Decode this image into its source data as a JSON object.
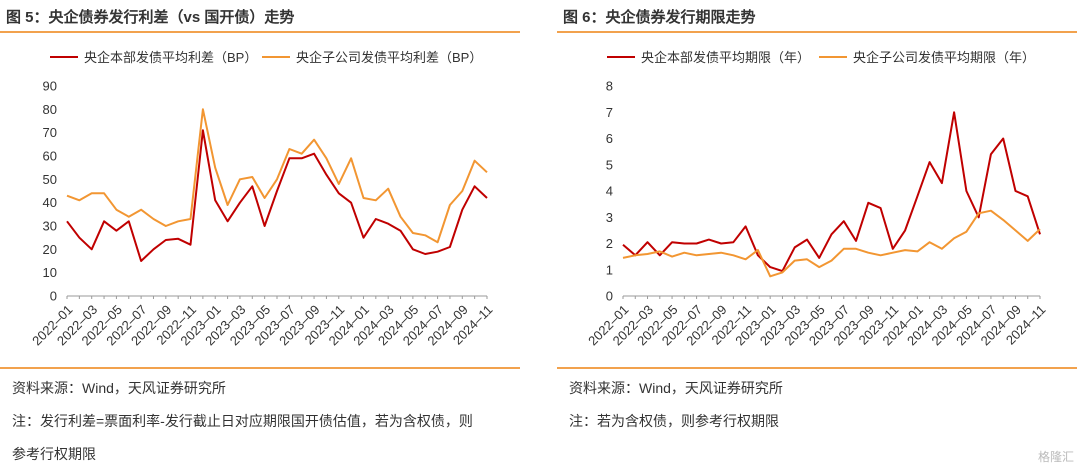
{
  "left_panel": {
    "title": "图 5：央企债券发行利差（vs 国开债）走势",
    "source": "资料来源：Wind，天风证券研究所",
    "note_line1": "注：发行利差=票面利率-发行截止日对应期限国开债估值，若为含权债，则",
    "note_line2": "参考行权期限"
  },
  "right_panel": {
    "title": "图 6：央企债券发行期限走势",
    "source": "资料来源：Wind，天风证券研究所",
    "note_line1": "注：若为含权债，则参考行权期限"
  },
  "watermark": "格隆汇",
  "colors": {
    "series1": "#c00000",
    "series2": "#f29632",
    "accent": "#f2a24d"
  },
  "chart_data": [
    {
      "type": "line",
      "x": [
        "2022-01",
        "2022-02",
        "2022-03",
        "2022-04",
        "2022-05",
        "2022-06",
        "2022-07",
        "2022-08",
        "2022-09",
        "2022-10",
        "2022-11",
        "2022-12",
        "2023-01",
        "2023-02",
        "2023-03",
        "2023-04",
        "2023-05",
        "2023-06",
        "2023-07",
        "2023-08",
        "2023-09",
        "2023-10",
        "2023-11",
        "2023-12",
        "2024-01",
        "2024-02",
        "2024-03",
        "2024-04",
        "2024-05",
        "2024-06",
        "2024-07",
        "2024-08",
        "2024-09",
        "2024-10",
        "2024-11"
      ],
      "tick_labels": [
        "2022–01",
        "2022–03",
        "2022–05",
        "2022–07",
        "2022–09",
        "2022–11",
        "2023–01",
        "2023–03",
        "2023–05",
        "2023–07",
        "2023–09",
        "2023–11",
        "2024–01",
        "2024–03",
        "2024–05",
        "2024–07",
        "2024–09",
        "2024–11"
      ],
      "series": [
        {
          "name": "央企本部发债平均利差（BP）",
          "values": [
            32,
            25,
            20,
            32,
            28,
            32,
            15,
            20,
            24,
            24.5,
            22,
            71,
            41,
            32,
            40,
            47,
            30,
            45,
            59,
            59,
            61,
            52,
            44,
            40,
            25,
            33,
            31,
            28,
            20,
            18,
            19,
            21,
            37,
            47,
            42
          ]
        },
        {
          "name": "央企子公司发债平均利差（BP）",
          "values": [
            43,
            41,
            44,
            44,
            37,
            34,
            37,
            33,
            30,
            32,
            33,
            80,
            55,
            39,
            50,
            51,
            42,
            50,
            63,
            61,
            67,
            59,
            48,
            59,
            42,
            41,
            46,
            34,
            27,
            26,
            23,
            39,
            45,
            58,
            53
          ]
        }
      ],
      "ylim": [
        0,
        90
      ],
      "yticks": [
        0,
        10,
        20,
        30,
        40,
        50,
        60,
        70,
        80,
        90
      ],
      "legend": "top"
    },
    {
      "type": "line",
      "x": [
        "2022-01",
        "2022-02",
        "2022-03",
        "2022-04",
        "2022-05",
        "2022-06",
        "2022-07",
        "2022-08",
        "2022-09",
        "2022-10",
        "2022-11",
        "2022-12",
        "2023-01",
        "2023-02",
        "2023-03",
        "2023-04",
        "2023-05",
        "2023-06",
        "2023-07",
        "2023-08",
        "2023-09",
        "2023-10",
        "2023-11",
        "2023-12",
        "2024-01",
        "2024-02",
        "2024-03",
        "2024-04",
        "2024-05",
        "2024-06",
        "2024-07",
        "2024-08",
        "2024-09",
        "2024-10",
        "2024-11"
      ],
      "tick_labels": [
        "2022–01",
        "2022–03",
        "2022–05",
        "2022–07",
        "2022–09",
        "2022–11",
        "2023–01",
        "2023–03",
        "2023–05",
        "2023–07",
        "2023–09",
        "2023–11",
        "2024–01",
        "2024–03",
        "2024–05",
        "2024–07",
        "2024–09",
        "2024–11"
      ],
      "series": [
        {
          "name": "央企本部发债平均期限（年）",
          "values": [
            1.95,
            1.55,
            2.05,
            1.55,
            2.05,
            2.0,
            2.0,
            2.15,
            2.0,
            2.05,
            2.65,
            1.55,
            1.1,
            0.95,
            1.85,
            2.15,
            1.45,
            2.35,
            2.85,
            2.1,
            3.55,
            3.35,
            1.8,
            2.5,
            3.8,
            5.1,
            4.3,
            7.0,
            4.0,
            3.0,
            5.4,
            6.0,
            4.0,
            3.8,
            2.35
          ]
        },
        {
          "name": "央企子公司发债平均期限（年）",
          "values": [
            1.45,
            1.55,
            1.6,
            1.7,
            1.5,
            1.65,
            1.55,
            1.6,
            1.65,
            1.55,
            1.4,
            1.75,
            0.75,
            0.9,
            1.35,
            1.4,
            1.1,
            1.35,
            1.8,
            1.8,
            1.65,
            1.55,
            1.65,
            1.75,
            1.7,
            2.05,
            1.8,
            2.2,
            2.45,
            3.15,
            3.25,
            2.9,
            2.5,
            2.1,
            2.55
          ]
        }
      ],
      "ylim": [
        0,
        8
      ],
      "yticks": [
        0,
        1,
        2,
        3,
        4,
        5,
        6,
        7,
        8
      ],
      "legend": "top"
    }
  ]
}
